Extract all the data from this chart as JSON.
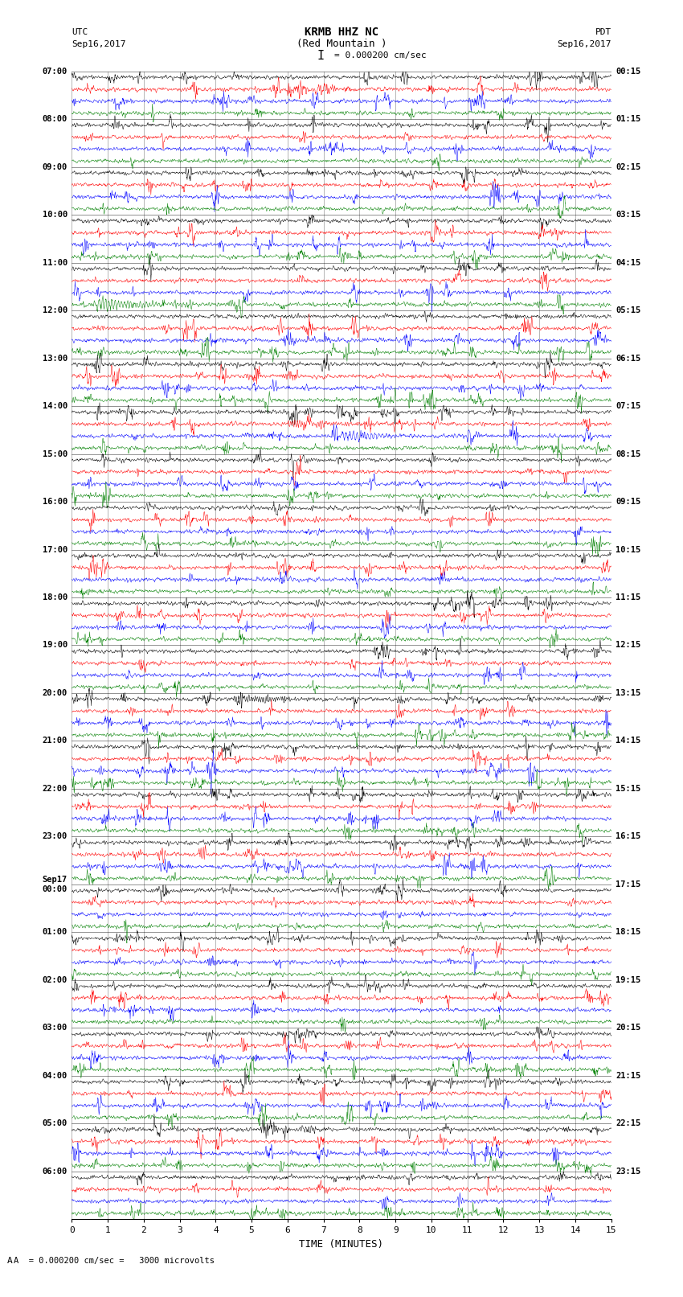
{
  "title_line1": "KRMB HHZ NC",
  "title_line2": "(Red Mountain )",
  "scale_label": "I = 0.000200 cm/sec",
  "left_header": "UTC",
  "left_date": "Sep16,2017",
  "right_header": "PDT",
  "right_date": "Sep16,2017",
  "xlabel": "TIME (MINUTES)",
  "bottom_note": "A  = 0.000200 cm/sec =   3000 microvolts",
  "x_ticks": [
    0,
    1,
    2,
    3,
    4,
    5,
    6,
    7,
    8,
    9,
    10,
    11,
    12,
    13,
    14,
    15
  ],
  "utc_labels": [
    "07:00",
    "08:00",
    "09:00",
    "10:00",
    "11:00",
    "12:00",
    "13:00",
    "14:00",
    "15:00",
    "16:00",
    "17:00",
    "18:00",
    "19:00",
    "20:00",
    "21:00",
    "22:00",
    "23:00",
    "Sep17\n00:00",
    "01:00",
    "02:00",
    "03:00",
    "04:00",
    "05:00",
    "06:00"
  ],
  "pdt_labels": [
    "00:15",
    "01:15",
    "02:15",
    "03:15",
    "04:15",
    "05:15",
    "06:15",
    "07:15",
    "08:15",
    "09:15",
    "10:15",
    "11:15",
    "12:15",
    "13:15",
    "14:15",
    "15:15",
    "16:15",
    "17:15",
    "18:15",
    "19:15",
    "20:15",
    "21:15",
    "22:15",
    "23:15"
  ],
  "trace_colors": [
    "black",
    "red",
    "blue",
    "green"
  ],
  "n_rows": 24,
  "traces_per_row": 4,
  "bg_color": "white",
  "figsize": [
    8.5,
    16.13
  ],
  "dpi": 100
}
